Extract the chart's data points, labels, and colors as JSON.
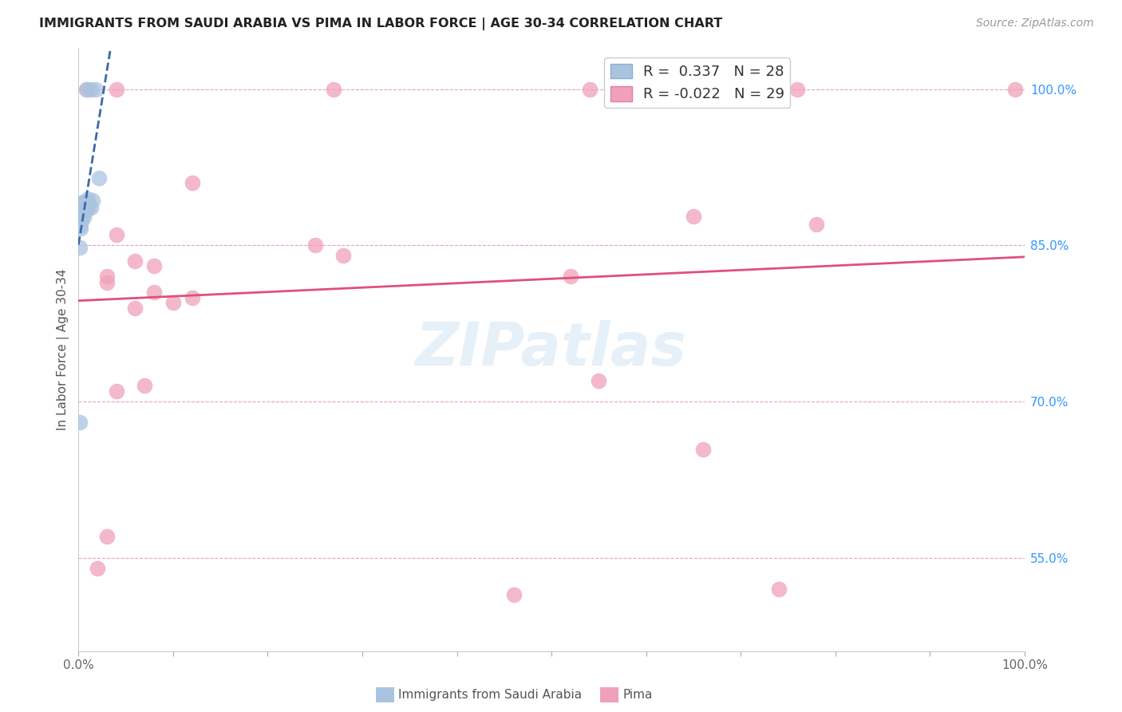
{
  "title": "IMMIGRANTS FROM SAUDI ARABIA VS PIMA IN LABOR FORCE | AGE 30-34 CORRELATION CHART",
  "source": "Source: ZipAtlas.com",
  "ylabel": "In Labor Force | Age 30-34",
  "xlim": [
    0.0,
    1.0
  ],
  "ylim": [
    0.46,
    1.04
  ],
  "xticks": [
    0.0,
    0.1,
    0.2,
    0.3,
    0.4,
    0.5,
    0.6,
    0.7,
    0.8,
    0.9,
    1.0
  ],
  "xticklabels": [
    "0.0%",
    "",
    "",
    "",
    "",
    "",
    "",
    "",
    "",
    "",
    "100.0%"
  ],
  "ytick_right_values": [
    0.55,
    0.7,
    0.85,
    1.0
  ],
  "ytick_right_labels": [
    "55.0%",
    "70.0%",
    "85.0%",
    "100.0%"
  ],
  "legend_r_blue": " 0.337",
  "legend_n_blue": "28",
  "legend_r_pink": "-0.022",
  "legend_n_pink": "29",
  "watermark": "ZIPatlas",
  "blue_color": "#aac4e0",
  "pink_color": "#f0a0b8",
  "trendline_blue_color": "#3a6aaa",
  "trendline_pink_color": "#e0507a",
  "blue_scatter": [
    [
      0.008,
      1.0
    ],
    [
      0.013,
      1.0
    ],
    [
      0.018,
      1.0
    ],
    [
      0.022,
      0.915
    ],
    [
      0.01,
      0.895
    ],
    [
      0.015,
      0.893
    ],
    [
      0.008,
      0.892
    ],
    [
      0.006,
      0.892
    ],
    [
      0.004,
      0.891
    ],
    [
      0.003,
      0.891
    ],
    [
      0.007,
      0.891
    ],
    [
      0.009,
      0.888
    ],
    [
      0.005,
      0.888
    ],
    [
      0.011,
      0.887
    ],
    [
      0.013,
      0.886
    ],
    [
      0.006,
      0.886
    ],
    [
      0.003,
      0.885
    ],
    [
      0.002,
      0.885
    ],
    [
      0.004,
      0.884
    ],
    [
      0.008,
      0.883
    ],
    [
      0.002,
      0.88
    ],
    [
      0.004,
      0.879
    ],
    [
      0.006,
      0.877
    ],
    [
      0.003,
      0.873
    ],
    [
      0.001,
      0.868
    ],
    [
      0.002,
      0.866
    ],
    [
      0.001,
      0.848
    ],
    [
      0.001,
      0.68
    ]
  ],
  "pink_scatter": [
    [
      0.009,
      1.0
    ],
    [
      0.04,
      1.0
    ],
    [
      0.27,
      1.0
    ],
    [
      0.54,
      1.0
    ],
    [
      0.76,
      1.0
    ],
    [
      0.99,
      1.0
    ],
    [
      0.12,
      0.91
    ],
    [
      0.65,
      0.878
    ],
    [
      0.78,
      0.87
    ],
    [
      0.04,
      0.86
    ],
    [
      0.25,
      0.85
    ],
    [
      0.28,
      0.84
    ],
    [
      0.06,
      0.835
    ],
    [
      0.08,
      0.83
    ],
    [
      0.03,
      0.82
    ],
    [
      0.03,
      0.814
    ],
    [
      0.08,
      0.805
    ],
    [
      0.12,
      0.8
    ],
    [
      0.52,
      0.82
    ],
    [
      0.06,
      0.79
    ],
    [
      0.1,
      0.795
    ],
    [
      0.55,
      0.72
    ],
    [
      0.04,
      0.71
    ],
    [
      0.07,
      0.715
    ],
    [
      0.66,
      0.654
    ],
    [
      0.03,
      0.57
    ],
    [
      0.02,
      0.54
    ],
    [
      0.46,
      0.514
    ],
    [
      0.74,
      0.52
    ]
  ]
}
